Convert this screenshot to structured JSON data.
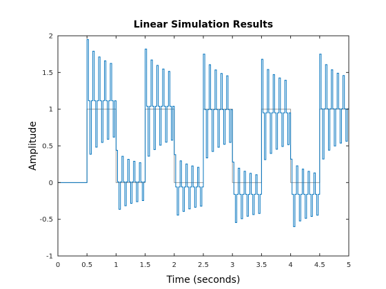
{
  "chart_data": {
    "type": "line",
    "title": "Linear Simulation Results",
    "xlabel": "Time (seconds)",
    "ylabel": "Amplitude",
    "xlim": [
      0,
      5
    ],
    "ylim": [
      -1,
      2
    ],
    "xticks": [
      "0",
      "0.5",
      "1",
      "1.5",
      "2",
      "2.5",
      "3",
      "3.5",
      "4",
      "4.5",
      "5"
    ],
    "yticks": [
      "-1",
      "-0.5",
      "0",
      "0.5",
      "1",
      "1.5",
      "2"
    ],
    "grid": false,
    "series": [
      {
        "role": "input",
        "color": "#999999",
        "x": [
          0,
          0.5,
          0.5,
          1,
          1,
          1.5,
          1.5,
          2,
          2,
          2.5,
          2.5,
          3,
          3,
          3.5,
          3.5,
          4,
          4,
          4.5,
          4.5,
          5
        ],
        "values": [
          0,
          0,
          1,
          1,
          0,
          0,
          1,
          1,
          0,
          0,
          1,
          1,
          0,
          0,
          1,
          1,
          0,
          0,
          1,
          1
        ]
      },
      {
        "role": "response",
        "color": "#0072bd",
        "x": [
          0,
          0.5,
          1,
          1.5,
          2,
          2.5,
          3,
          3.5,
          4,
          4.5,
          5
        ],
        "values": [
          0,
          0,
          0,
          1,
          0,
          1,
          0,
          1,
          0,
          1,
          1
        ],
        "peaks": [
          1.95,
          0.44,
          1.82,
          0.38,
          1.75,
          0.28,
          1.68,
          0.32,
          1.75,
          0.32
        ],
        "troughs": [
          0.28,
          -0.42,
          0.26,
          -0.5,
          0.24,
          -0.6,
          0.22,
          -0.64,
          0.26,
          -0.58
        ]
      }
    ]
  }
}
